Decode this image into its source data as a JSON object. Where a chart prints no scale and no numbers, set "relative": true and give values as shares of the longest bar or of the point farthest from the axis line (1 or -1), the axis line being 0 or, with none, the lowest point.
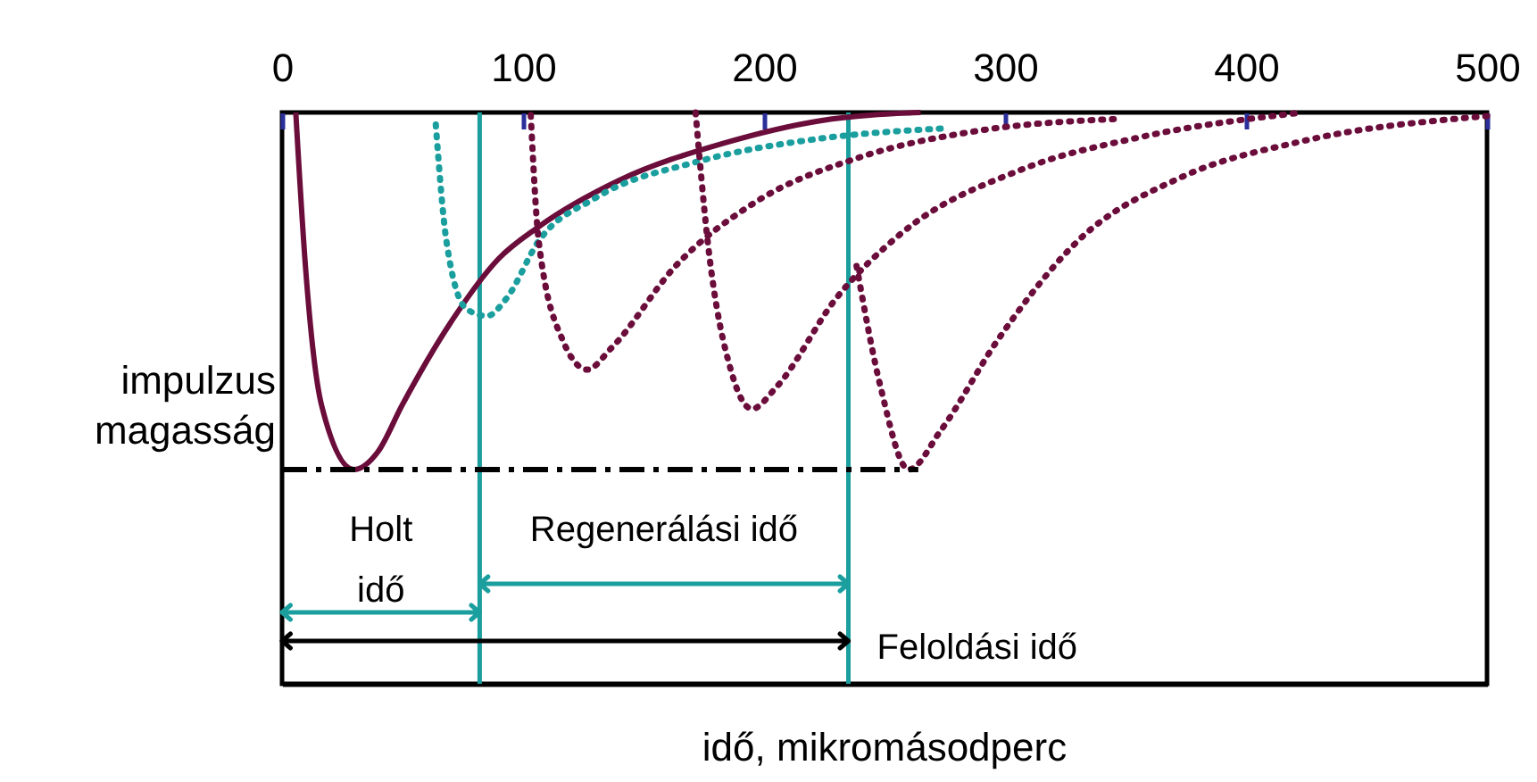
{
  "chart_data": {
    "type": "line",
    "relative": true,
    "ylabel": "impulzus magasság",
    "xlim": [
      0,
      500
    ],
    "xticks": [
      0,
      100,
      200,
      300,
      400,
      500
    ],
    "tick_labels": "x",
    "series": [
      {
        "color": "#6b0d3b",
        "line_style": "solid",
        "x": [
          5.7,
          9.7,
          16.4,
          29.8,
          39.8,
          49.8,
          69.8,
          89.8,
          106.5,
          139.9,
          183.3,
          223.4,
          265
        ],
        "values": [
          0,
          -0.43,
          -0.82,
          -1,
          -0.95,
          -0.82,
          -0.59,
          -0.41,
          -0.32,
          -0.19,
          -0.086,
          -0.023,
          0
        ]
      },
      {
        "color": "#1a9e9e",
        "line_style": "dotted",
        "x": [
          63.8,
          68.2,
          76.5,
          85,
          93.2,
          106.5,
          129.9,
          173.3,
          223.4,
          273.4
        ],
        "values": [
          -0.034,
          -0.36,
          -0.55,
          -0.57,
          -0.52,
          -0.36,
          -0.24,
          -0.136,
          -0.073,
          -0.045
        ]
      },
      {
        "color": "#6b0d3b",
        "line_style": "dotted",
        "x": [
          103.2,
          106.5,
          116.6,
          126.6,
          136.6,
          163.3,
          196.7,
          240,
          290.1,
          346.9
        ],
        "values": [
          -0.007,
          -0.36,
          -0.64,
          -0.72,
          -0.66,
          -0.43,
          -0.25,
          -0.125,
          -0.05,
          -0.018
        ]
      },
      {
        "color": "#6b0d3b",
        "line_style": "dotted",
        "x": [
          171.6,
          176.6,
          186.6,
          195,
          205,
          230,
          256.7,
          306.8,
          356.9,
          423.6
        ],
        "values": [
          0,
          -0.36,
          -0.73,
          -0.83,
          -0.77,
          -0.52,
          -0.34,
          -0.16,
          -0.068,
          0
        ]
      },
      {
        "color": "#6b0d3b",
        "line_style": "dotted",
        "x": [
          238.4,
          248.4,
          260,
          273.4,
          296.7,
          330.2,
          373.6,
          423.6,
          500
        ],
        "values": [
          -0.43,
          -0.77,
          -1,
          -0.89,
          -0.64,
          -0.36,
          -0.18,
          -0.08,
          -0.01
        ]
      },
      {
        "color": "#000000",
        "line_style": "dashed",
        "x": [
          0,
          264
        ],
        "values": [
          -1,
          -1
        ]
      }
    ],
    "ref_lines": [
      {
        "axis": "x",
        "value": 82,
        "color": "#1a9e9e"
      },
      {
        "axis": "x",
        "value": 235,
        "color": "#1a9e9e"
      }
    ],
    "annotations": [
      "Holt idő",
      "Regenerálási idő",
      "Feloldási idő",
      "idő, mikromásodperc"
    ]
  }
}
